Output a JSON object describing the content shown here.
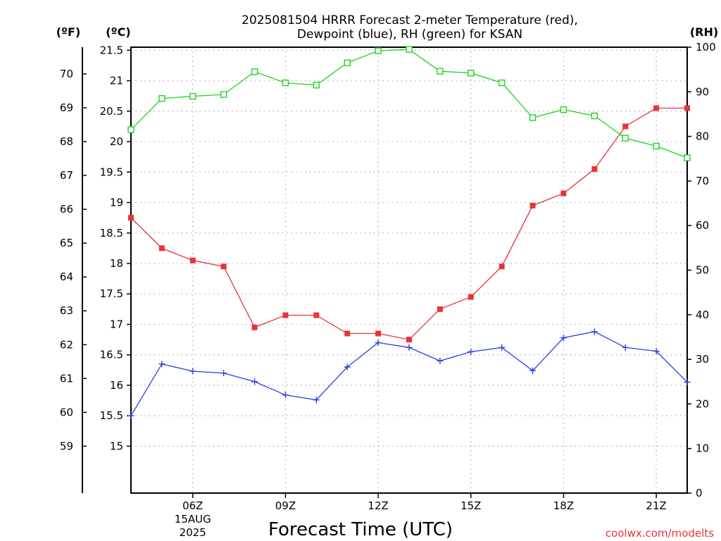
{
  "chart_data": {
    "type": "line",
    "title": "2025081504 HRRR Forecast 2-meter Temperature (red),",
    "subtitle": "Dewpoint (blue), RH (green) for KSAN",
    "xlabel": "Forecast Time (UTC)",
    "x_unit_labels": {
      "f": "(ºF)",
      "c": "(ºC)",
      "rh": "(RH)"
    },
    "x": [
      "04Z",
      "05Z",
      "06Z",
      "07Z",
      "08Z",
      "09Z",
      "10Z",
      "11Z",
      "12Z",
      "13Z",
      "14Z",
      "15Z",
      "16Z",
      "17Z",
      "18Z",
      "19Z",
      "20Z",
      "21Z",
      "22Z"
    ],
    "x_ticks": [
      {
        "label": "06Z",
        "date": "15AUG",
        "year": "2025"
      },
      {
        "label": "09Z"
      },
      {
        "label": "12Z"
      },
      {
        "label": "15Z"
      },
      {
        "label": "18Z"
      },
      {
        "label": "21Z"
      }
    ],
    "y_celsius_ticks": [
      "15",
      "15.5",
      "16",
      "16.5",
      "17",
      "17.5",
      "18",
      "18.5",
      "19",
      "19.5",
      "20",
      "20.5",
      "21",
      "21.5"
    ],
    "y_fahrenheit_ticks": [
      "59",
      "60",
      "61",
      "62",
      "63",
      "64",
      "65",
      "66",
      "67",
      "68",
      "69",
      "70"
    ],
    "y_rh_ticks": [
      "0",
      "10",
      "20",
      "30",
      "40",
      "50",
      "60",
      "70",
      "80",
      "90",
      "100"
    ],
    "ylim_celsius": [
      14.23,
      21.55
    ],
    "ylim_rh": [
      0,
      100
    ],
    "grid": true,
    "series": [
      {
        "name": "Temperature",
        "axis": "celsius",
        "color": "#e8333a",
        "marker": "filled-square",
        "values": [
          18.75,
          18.25,
          18.05,
          17.95,
          16.95,
          17.15,
          17.15,
          16.85,
          16.85,
          16.75,
          17.25,
          17.45,
          17.95,
          18.95,
          19.15,
          19.55,
          20.25,
          20.55,
          20.55
        ]
      },
      {
        "name": "Dewpoint",
        "axis": "celsius",
        "color": "#2a3fe0",
        "marker": "plus",
        "values": [
          15.5,
          16.35,
          16.23,
          16.2,
          16.06,
          15.84,
          15.76,
          16.3,
          16.7,
          16.62,
          16.4,
          16.55,
          16.62,
          16.24,
          16.78,
          16.88,
          16.62,
          16.56,
          16.05
        ]
      },
      {
        "name": "RH",
        "axis": "rh",
        "color": "#1ed41e",
        "marker": "open-square",
        "values": [
          81.5,
          88.5,
          89,
          89.4,
          94.5,
          92,
          91.5,
          96.5,
          99.2,
          99.5,
          94.6,
          94.2,
          92,
          84.2,
          86,
          84.6,
          79.6,
          77.8,
          75.2
        ]
      }
    ],
    "credit": "coolwx.com/modelts"
  }
}
